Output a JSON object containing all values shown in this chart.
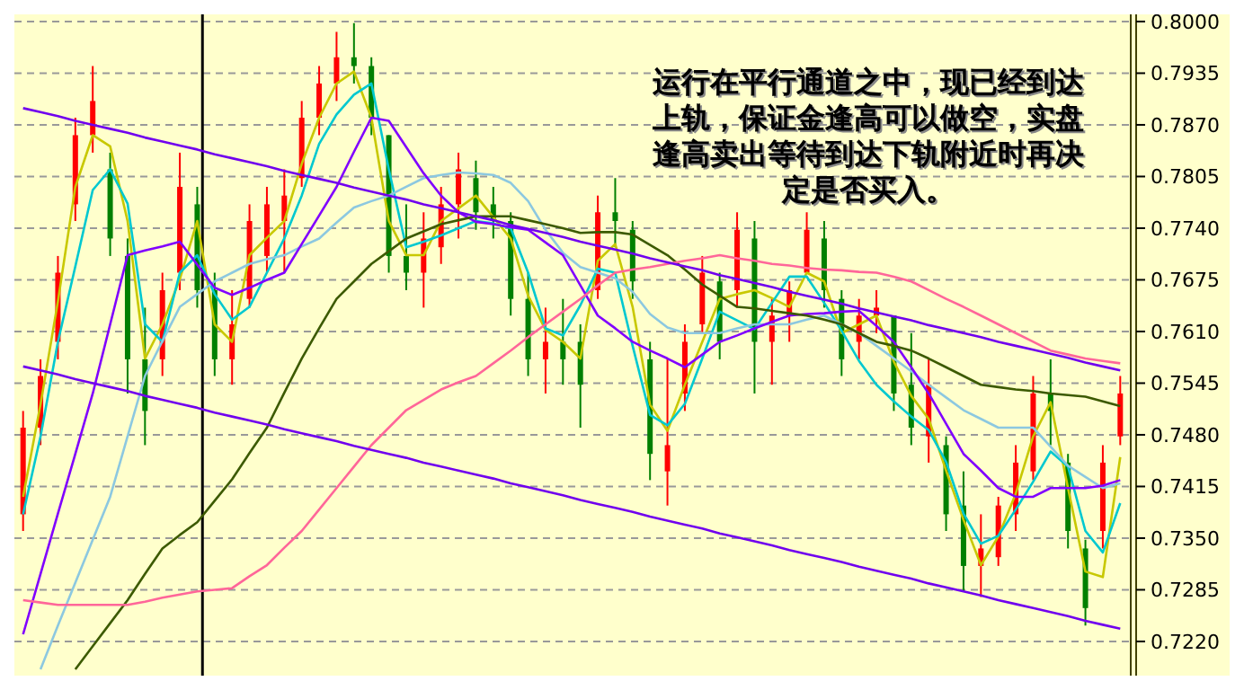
{
  "chart_data": {
    "type": "candlestick",
    "categories": [
      null,
      null,
      null,
      null,
      null,
      null,
      null,
      null,
      null,
      null,
      null,
      null,
      null,
      null,
      null,
      null,
      null,
      null,
      null,
      null,
      null,
      null,
      null,
      null,
      null,
      null,
      null,
      null,
      null,
      null,
      null,
      null,
      null,
      null,
      null,
      null,
      null,
      null,
      null,
      null,
      null,
      null,
      null,
      null,
      null,
      null,
      null,
      null,
      null,
      null,
      null,
      null,
      null,
      null,
      null,
      null,
      null,
      null,
      null,
      null,
      null,
      null,
      null,
      null
    ],
    "ohlc": [
      [
        0.738,
        0.751,
        0.7359,
        0.7489
      ],
      [
        0.7489,
        0.7575,
        0.7467,
        0.7554
      ],
      [
        0.7597,
        0.7705,
        0.7575,
        0.7684
      ],
      [
        0.777,
        0.7879,
        0.7749,
        0.7857
      ],
      [
        0.7857,
        0.7944,
        0.7835,
        0.79
      ],
      [
        0.7814,
        0.7835,
        0.7705,
        0.7727
      ],
      [
        0.7705,
        0.7727,
        0.7532,
        0.7575
      ],
      [
        0.7575,
        0.764,
        0.7467,
        0.751
      ],
      [
        0.7575,
        0.7684,
        0.7554,
        0.7662
      ],
      [
        0.7684,
        0.7835,
        0.7662,
        0.7792
      ],
      [
        0.777,
        0.7792,
        0.764,
        0.7662
      ],
      [
        0.7662,
        0.7684,
        0.7554,
        0.7575
      ],
      [
        0.7575,
        0.7662,
        0.7543,
        0.7619
      ],
      [
        0.7651,
        0.777,
        0.764,
        0.7749
      ],
      [
        0.7705,
        0.7792,
        0.7684,
        0.777
      ],
      [
        0.7749,
        0.7814,
        0.7684,
        0.7781
      ],
      [
        0.7803,
        0.79,
        0.7792,
        0.7879
      ],
      [
        0.7879,
        0.7944,
        0.7857,
        0.7922
      ],
      [
        0.7922,
        0.7987,
        0.79,
        0.7955
      ],
      [
        0.7955,
        0.7998,
        0.7922,
        0.7944
      ],
      [
        0.7944,
        0.7955,
        0.7857,
        0.7879
      ],
      [
        0.7857,
        0.7857,
        0.7684,
        0.7705
      ],
      [
        0.7705,
        0.777,
        0.7662,
        0.7684
      ],
      [
        0.7684,
        0.776,
        0.764,
        0.7727
      ],
      [
        0.7716,
        0.7792,
        0.7695,
        0.777
      ],
      [
        0.777,
        0.7835,
        0.7727,
        0.7814
      ],
      [
        0.7803,
        0.7825,
        0.7738,
        0.776
      ],
      [
        0.777,
        0.7792,
        0.7727,
        0.7749
      ],
      [
        0.7749,
        0.776,
        0.763,
        0.7651
      ],
      [
        0.7651,
        0.7684,
        0.7554,
        0.7575
      ],
      [
        0.7575,
        0.764,
        0.7532,
        0.7597
      ],
      [
        0.7597,
        0.7651,
        0.7543,
        0.7575
      ],
      [
        0.7597,
        0.7619,
        0.7489,
        0.7543
      ],
      [
        0.7662,
        0.7781,
        0.7651,
        0.776
      ],
      [
        0.776,
        0.7803,
        0.7716,
        0.7749
      ],
      [
        0.7738,
        0.7749,
        0.7651,
        0.7673
      ],
      [
        0.7575,
        0.7597,
        0.7423,
        0.7456
      ],
      [
        0.7434,
        0.7575,
        0.7391,
        0.7467
      ],
      [
        0.7532,
        0.7619,
        0.751,
        0.7597
      ],
      [
        0.7619,
        0.7705,
        0.7608,
        0.7684
      ],
      [
        0.7673,
        0.7684,
        0.7575,
        0.7597
      ],
      [
        0.7662,
        0.776,
        0.764,
        0.7738
      ],
      [
        0.7727,
        0.7749,
        0.7532,
        0.7597
      ],
      [
        0.7597,
        0.7651,
        0.7543,
        0.763
      ],
      [
        0.763,
        0.7673,
        0.7597,
        0.7662
      ],
      [
        0.7684,
        0.776,
        0.7684,
        0.7738
      ],
      [
        0.7727,
        0.7749,
        0.764,
        0.7662
      ],
      [
        0.7651,
        0.7662,
        0.7554,
        0.7575
      ],
      [
        0.7597,
        0.7651,
        0.7575,
        0.763
      ],
      [
        0.763,
        0.7662,
        0.7608,
        0.764
      ],
      [
        0.763,
        0.763,
        0.751,
        0.7532
      ],
      [
        0.7543,
        0.7608,
        0.7467,
        0.7489
      ],
      [
        0.7478,
        0.7575,
        0.7445,
        0.7543
      ],
      [
        0.7467,
        0.7478,
        0.7359,
        0.738
      ],
      [
        0.7391,
        0.7434,
        0.7283,
        0.7315
      ],
      [
        0.7315,
        0.738,
        0.7276,
        0.7337
      ],
      [
        0.7326,
        0.7402,
        0.7315,
        0.7391
      ],
      [
        0.738,
        0.7467,
        0.7359,
        0.7445
      ],
      [
        0.7434,
        0.7554,
        0.7423,
        0.7532
      ],
      [
        0.7532,
        0.7575,
        0.7467,
        0.751
      ],
      [
        0.7445,
        0.7456,
        0.7337,
        0.7359
      ],
      [
        0.7337,
        0.7348,
        0.724,
        0.7262
      ],
      [
        0.7359,
        0.7467,
        0.7337,
        0.7445
      ],
      [
        0.7478,
        0.7554,
        0.7467,
        0.7532
      ]
    ],
    "colors": [
      "#ff0000",
      "#ff0000",
      "#ff0000",
      "#ff0000",
      "#ff0000",
      "#008000",
      "#008000",
      "#008000",
      "#ff0000",
      "#ff0000",
      "#008000",
      "#008000",
      "#ff0000",
      "#ff0000",
      "#ff0000",
      "#ff0000",
      "#ff0000",
      "#ff0000",
      "#ff0000",
      "#008000",
      "#008000",
      "#008000",
      "#008000",
      "#ff0000",
      "#ff0000",
      "#ff0000",
      "#008000",
      "#008000",
      "#008000",
      "#008000",
      "#ff0000",
      "#008000",
      "#008000",
      "#ff0000",
      "#008000",
      "#008000",
      "#008000",
      "#ff0000",
      "#ff0000",
      "#ff0000",
      "#008000",
      "#ff0000",
      "#008000",
      "#ff0000",
      "#ff0000",
      "#ff0000",
      "#008000",
      "#008000",
      "#ff0000",
      "#ff0000",
      "#008000",
      "#008000",
      "#ff0000",
      "#008000",
      "#008000",
      "#ff0000",
      "#ff0000",
      "#ff0000",
      "#ff0000",
      "#008000",
      "#008000",
      "#008000",
      "#ff0000",
      "#ff0000"
    ],
    "series": [
      {
        "type": "line",
        "color": "#c8c800",
        "values": [
          0.7402,
          0.7518,
          0.7648,
          0.7792,
          0.7857,
          0.7843,
          0.7749,
          0.7576,
          0.7619,
          0.7676,
          0.7749,
          0.7619,
          0.7597,
          0.7706,
          0.7728,
          0.7749,
          0.7821,
          0.7879,
          0.7922,
          0.7937,
          0.7879,
          0.7749,
          0.7706,
          0.7706,
          0.7749,
          0.7765,
          0.7781,
          0.7754,
          0.7727,
          0.7655,
          0.7612,
          0.7597,
          0.7576,
          0.7699,
          0.772,
          0.7641,
          0.7518,
          0.7485,
          0.7543,
          0.7597,
          0.7651,
          0.7657,
          0.7662,
          0.7652,
          0.7641,
          0.7684,
          0.7673,
          0.7608,
          0.7619,
          0.763,
          0.7572,
          0.7529,
          0.75,
          0.7435,
          0.7373,
          0.7316,
          0.7352,
          0.7406,
          0.7478,
          0.7521,
          0.7413,
          0.7308,
          0.7301,
          0.7452
        ]
      },
      {
        "type": "line",
        "color": "#00c8d0",
        "values": [
          0.738,
          0.7478,
          0.7597,
          0.7692,
          0.7788,
          0.7814,
          0.7771,
          0.7619,
          0.7597,
          0.7684,
          0.7706,
          0.7657,
          0.7625,
          0.7641,
          0.7684,
          0.7727,
          0.7781,
          0.7846,
          0.7883,
          0.7908,
          0.7922,
          0.7814,
          0.7716,
          0.7723,
          0.7731,
          0.774,
          0.7749,
          0.7746,
          0.774,
          0.7684,
          0.7614,
          0.7605,
          0.7643,
          0.7689,
          0.7684,
          0.7592,
          0.7505,
          0.7492,
          0.7519,
          0.7576,
          0.7635,
          0.7624,
          0.7613,
          0.7646,
          0.7679,
          0.7679,
          0.7646,
          0.7611,
          0.7573,
          0.7543,
          0.7522,
          0.7503,
          0.7486,
          0.7446,
          0.7381,
          0.7343,
          0.7353,
          0.7386,
          0.7421,
          0.7459,
          0.744,
          0.7359,
          0.7332,
          0.7394
        ]
      },
      {
        "type": "line",
        "color": "#8cc8e0",
        "values": [
          null,
          0.7185,
          0.724,
          0.7294,
          0.7348,
          0.7402,
          0.7478,
          0.7554,
          0.7598,
          0.7641,
          0.7657,
          0.7673,
          0.7684,
          0.7695,
          0.7701,
          0.7706,
          0.7717,
          0.7727,
          0.7747,
          0.7766,
          0.7774,
          0.7781,
          0.7792,
          0.7803,
          0.7807,
          0.781,
          0.7809,
          0.7807,
          0.7797,
          0.7774,
          0.7738,
          0.7709,
          0.7691,
          0.7684,
          0.7677,
          0.766,
          0.7632,
          0.7615,
          0.7608,
          0.7608,
          0.7608,
          0.7614,
          0.7619,
          0.7619,
          0.7619,
          0.7625,
          0.763,
          0.7619,
          0.7608,
          0.7592,
          0.7576,
          0.756,
          0.7543,
          0.7527,
          0.7511,
          0.75,
          0.7489,
          0.7489,
          0.7489,
          0.7465,
          0.7441,
          0.7427,
          0.7413,
          0.7419
        ]
      },
      {
        "type": "line",
        "color": "#8000ff",
        "values": [
          0.7229,
          0.7305,
          0.7381,
          0.7456,
          0.7532,
          0.7619,
          0.7706,
          0.7712,
          0.7717,
          0.7723,
          0.7694,
          0.7665,
          0.7656,
          0.7665,
          0.7675,
          0.7684,
          0.772,
          0.7756,
          0.7792,
          0.7836,
          0.7879,
          0.7875,
          0.7842,
          0.7809,
          0.7781,
          0.776,
          0.7748,
          0.7745,
          0.7741,
          0.7738,
          0.7722,
          0.7706,
          0.7668,
          0.763,
          0.7614,
          0.7597,
          0.7586,
          0.7576,
          0.7565,
          0.7581,
          0.7597,
          0.7605,
          0.7614,
          0.7622,
          0.763,
          0.7632,
          0.7633,
          0.7635,
          0.7636,
          0.7617,
          0.7597,
          0.7565,
          0.7532,
          0.7494,
          0.7456,
          0.7435,
          0.7413,
          0.7402,
          0.7402,
          0.7413,
          0.7413,
          0.7413,
          0.7416,
          0.7423
        ]
      },
      {
        "type": "line",
        "color": "#3c5a00",
        "values": [
          null,
          null,
          null,
          0.7185,
          0.7214,
          0.7243,
          0.7272,
          0.7305,
          0.7337,
          0.7354,
          0.737,
          0.7397,
          0.7424,
          0.7457,
          0.7489,
          0.7533,
          0.7576,
          0.7614,
          0.7651,
          0.7673,
          0.7695,
          0.7711,
          0.7727,
          0.7736,
          0.7745,
          0.775,
          0.7755,
          0.7755,
          0.7755,
          0.775,
          0.7745,
          0.774,
          0.7734,
          0.7735,
          0.7735,
          0.7732,
          0.7719,
          0.7706,
          0.7688,
          0.7669,
          0.7655,
          0.7641,
          0.7639,
          0.7636,
          0.7633,
          0.763,
          0.7625,
          0.7619,
          0.7608,
          0.7597,
          0.7592,
          0.7586,
          0.7576,
          0.7565,
          0.7554,
          0.7543,
          0.754,
          0.7537,
          0.7535,
          0.7532,
          0.753,
          0.7528,
          0.7522,
          0.7516
        ]
      },
      {
        "type": "line",
        "color": "#ff6699",
        "values": [
          0.7272,
          0.7269,
          0.7266,
          0.7266,
          0.7266,
          0.7266,
          0.7266,
          0.727,
          0.7275,
          0.7279,
          0.7283,
          0.7285,
          0.7287,
          0.7302,
          0.7316,
          0.7338,
          0.7359,
          0.7386,
          0.7413,
          0.744,
          0.7467,
          0.7489,
          0.7511,
          0.7524,
          0.7537,
          0.7546,
          0.7554,
          0.757,
          0.7586,
          0.7603,
          0.7619,
          0.7635,
          0.7651,
          0.7668,
          0.7684,
          0.7688,
          0.7691,
          0.7695,
          0.7699,
          0.7702,
          0.7706,
          0.7702,
          0.7699,
          0.7695,
          0.7693,
          0.769,
          0.7688,
          0.7687,
          0.7685,
          0.7684,
          0.7679,
          0.7673,
          0.7662,
          0.7651,
          0.7641,
          0.763,
          0.7619,
          0.7608,
          0.7597,
          0.7586,
          0.7581,
          0.7576,
          0.7573,
          0.757
        ]
      },
      {
        "type": "line",
        "color": "#7000ee",
        "values": [
          0.7891,
          0.7886,
          0.7881,
          0.7875,
          0.787,
          0.7865,
          0.786,
          0.7854,
          0.7849,
          0.7844,
          0.7839,
          0.7833,
          0.7828,
          0.7823,
          0.7818,
          0.7812,
          0.7807,
          0.7802,
          0.7797,
          0.7791,
          0.7786,
          0.7781,
          0.7776,
          0.777,
          0.7765,
          0.776,
          0.7755,
          0.775,
          0.7744,
          0.7739,
          0.7734,
          0.7729,
          0.7723,
          0.7718,
          0.7713,
          0.7708,
          0.7702,
          0.7697,
          0.7692,
          0.7687,
          0.7681,
          0.7676,
          0.7671,
          0.7666,
          0.766,
          0.7655,
          0.765,
          0.7645,
          0.7639,
          0.7634,
          0.7629,
          0.7624,
          0.7618,
          0.7613,
          0.7608,
          0.7603,
          0.7597,
          0.7592,
          0.7587,
          0.7582,
          0.7577,
          0.7571,
          0.7566,
          0.7561
        ]
      },
      {
        "type": "line",
        "color": "#7000ee",
        "values": [
          0.7566,
          0.7561,
          0.7556,
          0.755,
          0.7545,
          0.754,
          0.7535,
          0.7529,
          0.7524,
          0.7519,
          0.7514,
          0.7508,
          0.7503,
          0.7498,
          0.7493,
          0.7487,
          0.7482,
          0.7477,
          0.7472,
          0.7466,
          0.7461,
          0.7456,
          0.7451,
          0.7445,
          0.744,
          0.7435,
          0.743,
          0.7425,
          0.7419,
          0.7414,
          0.7409,
          0.7404,
          0.7398,
          0.7393,
          0.7388,
          0.7383,
          0.7377,
          0.7372,
          0.7367,
          0.7362,
          0.7356,
          0.7351,
          0.7346,
          0.7341,
          0.7335,
          0.733,
          0.7325,
          0.732,
          0.7314,
          0.7309,
          0.7304,
          0.7299,
          0.7293,
          0.7288,
          0.7283,
          0.7278,
          0.7272,
          0.7267,
          0.7262,
          0.7257,
          0.7252,
          0.7246,
          0.7241,
          0.7236
        ]
      }
    ],
    "ylim": [
      0.7177,
      0.8009
    ],
    "yticks": [
      {
        "value": 0.8,
        "label": "0.8000"
      },
      0.7935,
      {
        "value": 0.787,
        "label": "0.7870"
      },
      0.7805,
      {
        "value": 0.774,
        "label": "0.7740"
      },
      0.7675,
      {
        "value": 0.761,
        "label": "0.7610"
      },
      0.7545,
      {
        "value": 0.748,
        "label": "0.7480"
      },
      0.7415,
      {
        "value": 0.735,
        "label": "0.7350"
      },
      0.7285,
      {
        "value": 0.722,
        "label": "0.7220"
      }
    ],
    "grid": "y",
    "annotations": [
      "运行在平行通道之中，现已经到达上轨，保证金逢高可以做空，实盘逢高卖出等待到达下轨附近时再决定是否买入。"
    ]
  }
}
